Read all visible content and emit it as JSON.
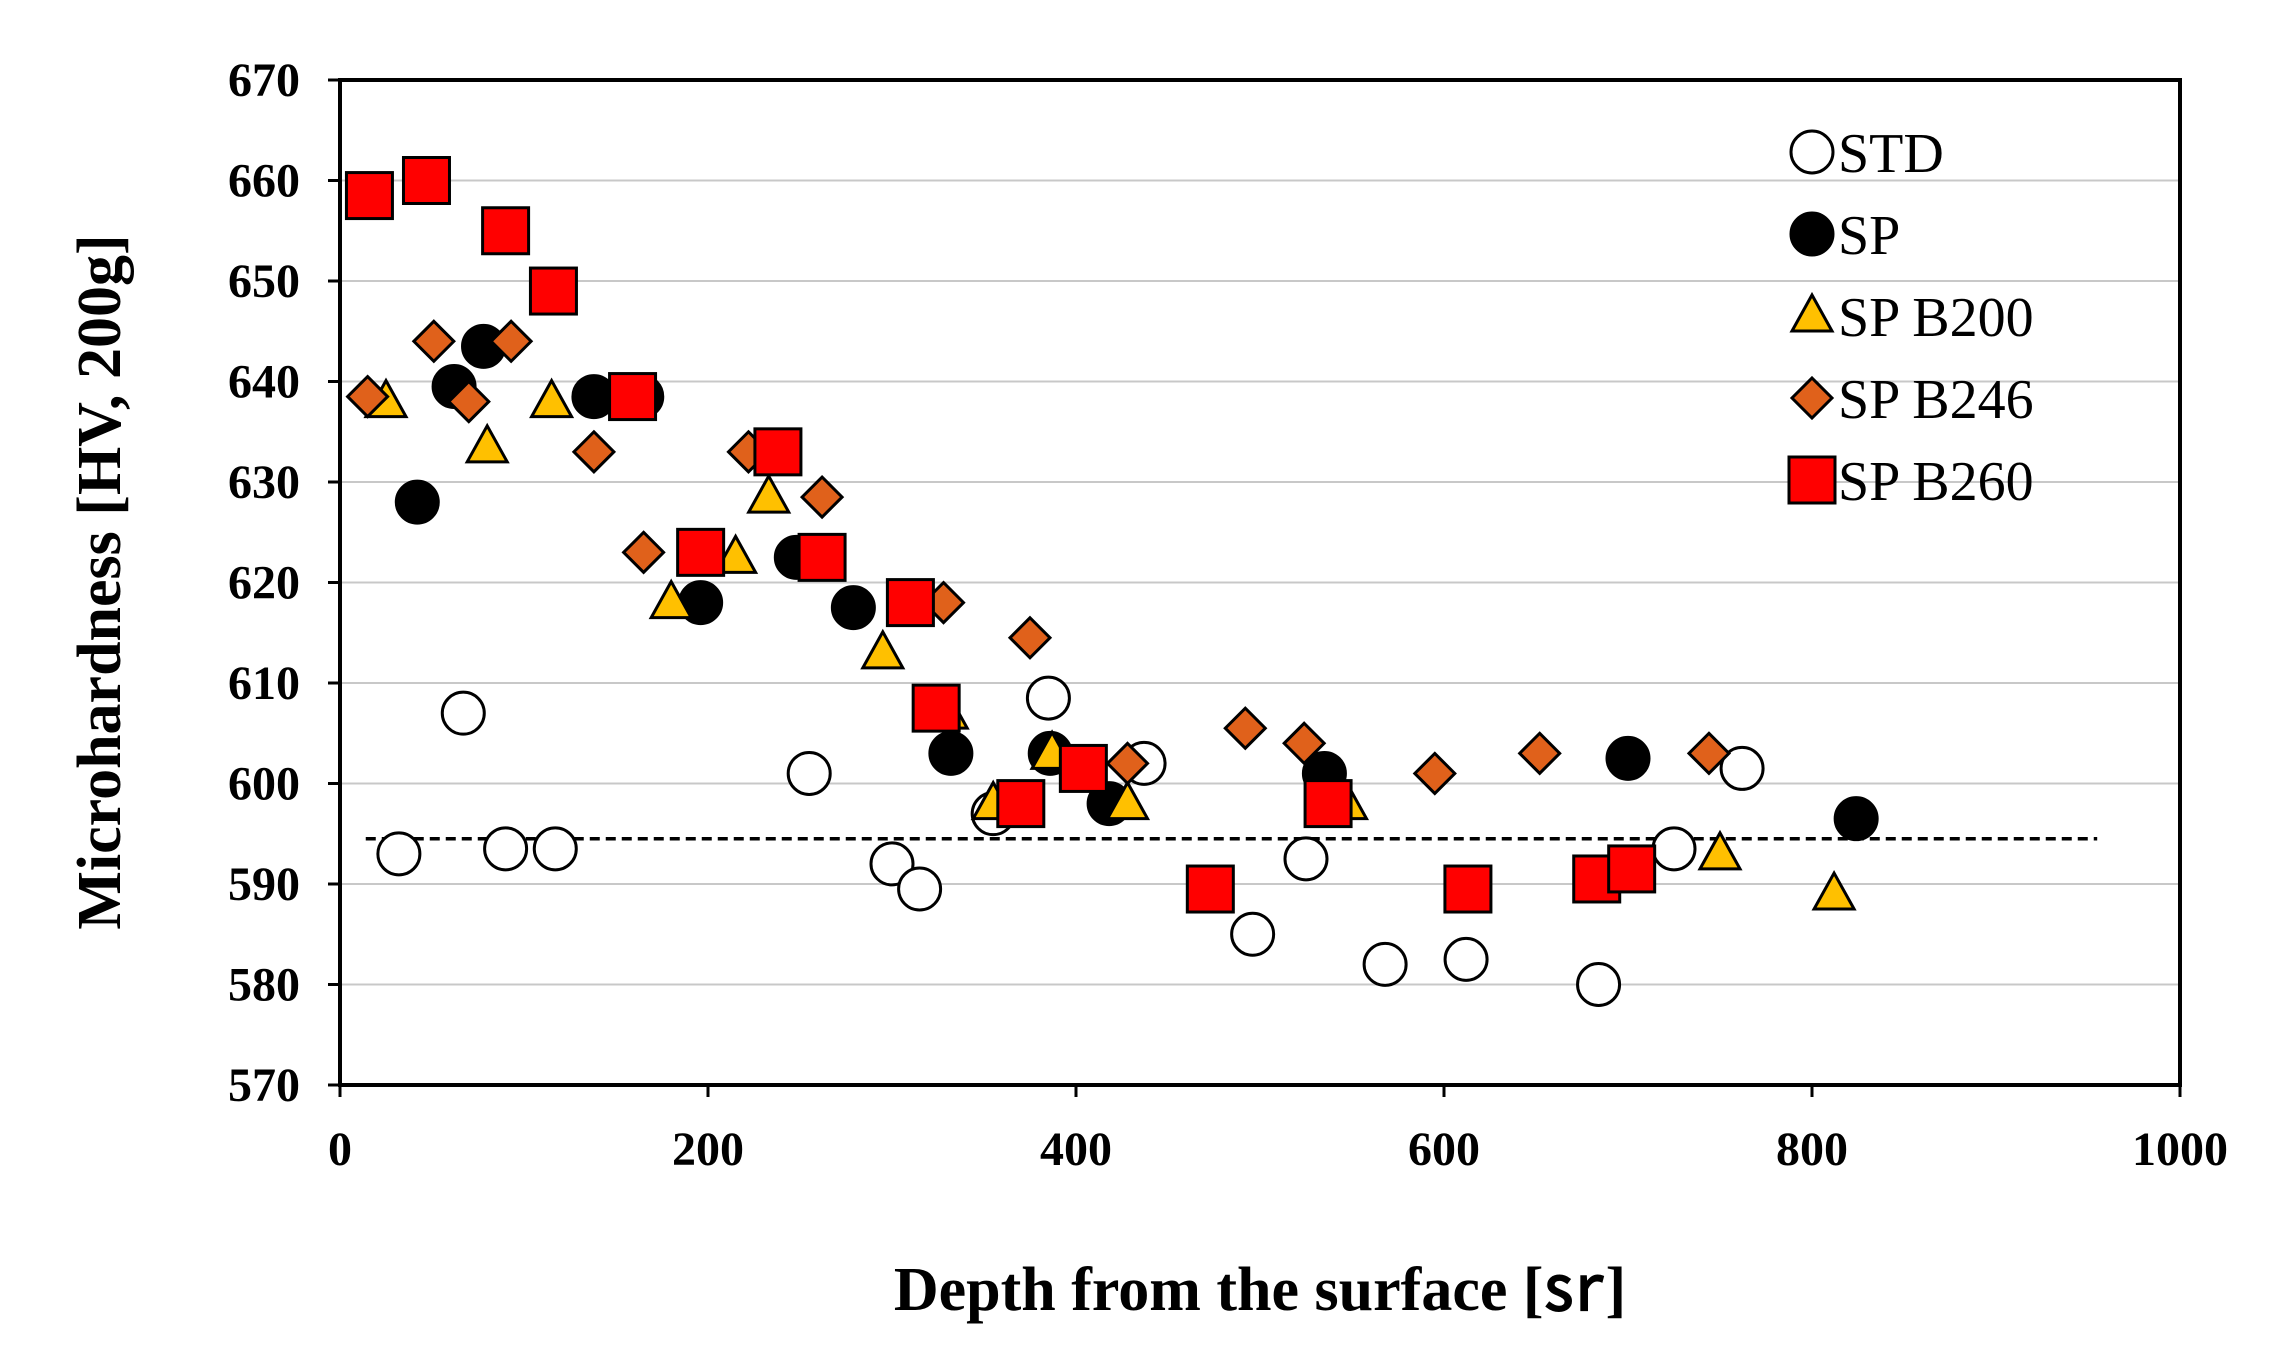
{
  "chart_data": {
    "type": "scatter",
    "title": "",
    "xlabel": "Depth from the surface [㏛]",
    "ylabel": "Microhardness [HV, 200g]",
    "xlim": [
      0,
      1000
    ],
    "ylim": [
      570,
      670
    ],
    "x_ticks": [
      "0",
      "200",
      "400",
      "600",
      "800",
      "1000"
    ],
    "y_ticks": [
      "570",
      "580",
      "590",
      "600",
      "610",
      "620",
      "630",
      "640",
      "650",
      "660",
      "670"
    ],
    "grid": "horizontal",
    "legend_position": "top-right",
    "reference_line": {
      "y": 594.5,
      "x_range": [
        14,
        955
      ],
      "style": "dashed"
    },
    "series": [
      {
        "name": "STD",
        "marker": "circle",
        "fill": "#ffffff",
        "points": [
          [
            32,
            593
          ],
          [
            67,
            607
          ],
          [
            90,
            593.5
          ],
          [
            117,
            593.5
          ],
          [
            255,
            601
          ],
          [
            300,
            592
          ],
          [
            315,
            589.5
          ],
          [
            355,
            597
          ],
          [
            385,
            608.5
          ],
          [
            437,
            602
          ],
          [
            496,
            585
          ],
          [
            525,
            592.5
          ],
          [
            568,
            582
          ],
          [
            612,
            582.5
          ],
          [
            684,
            580
          ],
          [
            725,
            593.5
          ],
          [
            762,
            601.5
          ]
        ]
      },
      {
        "name": "SP",
        "marker": "circle",
        "fill": "#000000",
        "points": [
          [
            42,
            628
          ],
          [
            62,
            639.5
          ],
          [
            78,
            643.5
          ],
          [
            138,
            638.5
          ],
          [
            164,
            638.5
          ],
          [
            196,
            618
          ],
          [
            248,
            622.5
          ],
          [
            279,
            617.5
          ],
          [
            332,
            603
          ],
          [
            386,
            603
          ],
          [
            418,
            598
          ],
          [
            535,
            601
          ],
          [
            700,
            602.5
          ],
          [
            824,
            596.5
          ]
        ]
      },
      {
        "name": "SP B200",
        "marker": "triangle",
        "fill": "#ffc000",
        "points": [
          [
            25,
            638
          ],
          [
            80,
            633.5
          ],
          [
            115,
            638
          ],
          [
            180,
            618
          ],
          [
            215,
            622.5
          ],
          [
            233,
            628.5
          ],
          [
            295,
            613
          ],
          [
            330,
            607
          ],
          [
            355,
            598
          ],
          [
            387,
            603
          ],
          [
            428,
            598
          ],
          [
            547,
            598
          ],
          [
            750,
            593
          ],
          [
            812,
            589
          ]
        ]
      },
      {
        "name": "SP B246",
        "marker": "diamond",
        "fill": "#e0611b",
        "points": [
          [
            15,
            638.5
          ],
          [
            51,
            644
          ],
          [
            70,
            638
          ],
          [
            93,
            644
          ],
          [
            138,
            633
          ],
          [
            165,
            623
          ],
          [
            222,
            633
          ],
          [
            262,
            628.5
          ],
          [
            328,
            618
          ],
          [
            375,
            614.5
          ],
          [
            428,
            602
          ],
          [
            492,
            605.5
          ],
          [
            524,
            604
          ],
          [
            595,
            601
          ],
          [
            652,
            603
          ],
          [
            744,
            603
          ]
        ]
      },
      {
        "name": "SP B260",
        "marker": "square",
        "fill": "#ff0000",
        "points": [
          [
            16,
            658.5
          ],
          [
            47,
            660
          ],
          [
            90,
            655
          ],
          [
            116,
            649
          ],
          [
            159,
            638.5
          ],
          [
            196,
            623
          ],
          [
            238,
            633
          ],
          [
            262,
            622.5
          ],
          [
            310,
            618
          ],
          [
            324,
            607.5
          ],
          [
            370,
            598
          ],
          [
            404,
            601.5
          ],
          [
            473,
            589.5
          ],
          [
            537,
            598
          ],
          [
            613,
            589.5
          ],
          [
            683,
            590.5
          ],
          [
            702,
            591.5
          ]
        ]
      }
    ]
  }
}
